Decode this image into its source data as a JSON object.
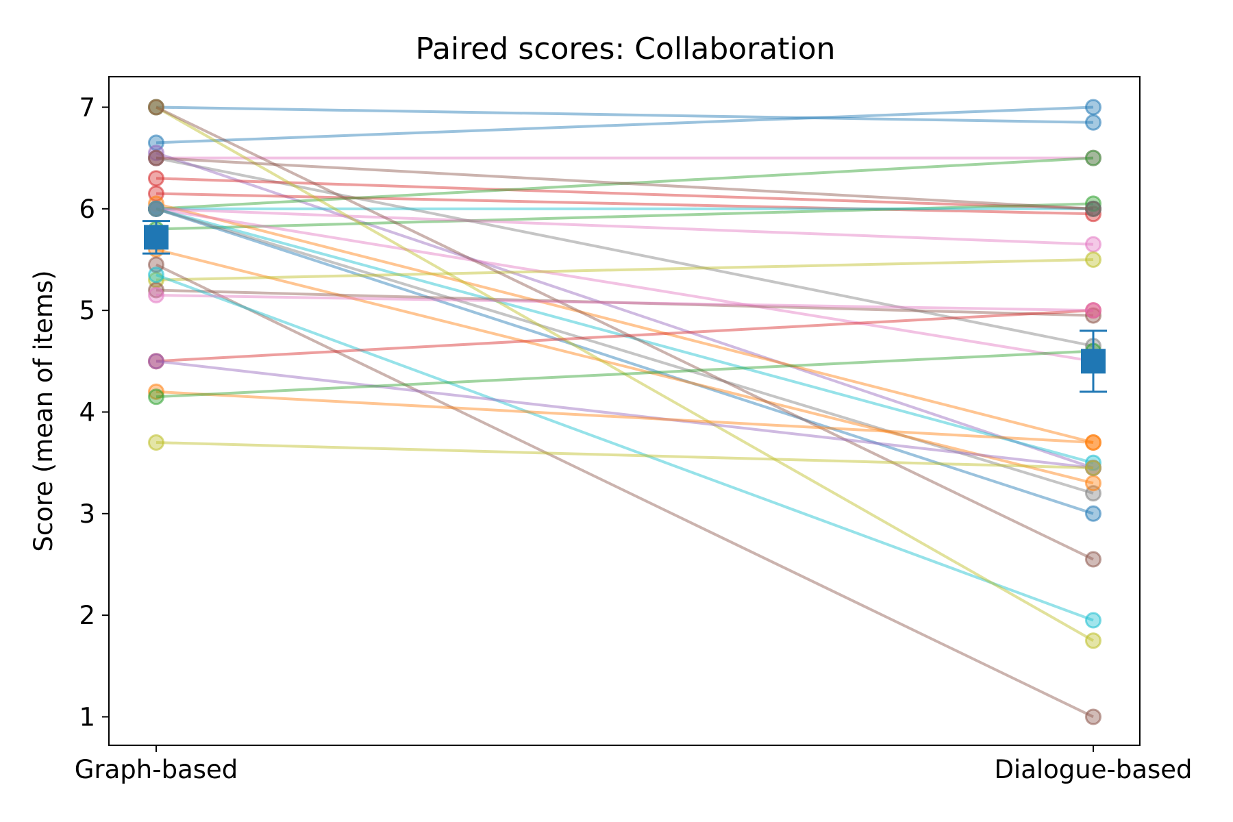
{
  "chart_data": {
    "type": "line",
    "title": "Paired scores: Collaboration",
    "xlabel": "",
    "ylabel": "Score (mean of items)",
    "categories": [
      "Graph-based",
      "Dialogue-based"
    ],
    "ylim": [
      0.72,
      7.3
    ],
    "yticks": [
      1,
      2,
      3,
      4,
      5,
      6,
      7
    ],
    "grid": false,
    "pairs": [
      {
        "values": [
          7.0,
          6.85
        ],
        "color": "#1f77b4"
      },
      {
        "values": [
          6.65,
          7.0
        ],
        "color": "#1f77b4"
      },
      {
        "values": [
          6.5,
          6.5
        ],
        "color": "#e377c2"
      },
      {
        "values": [
          6.5,
          4.65
        ],
        "color": "#7f7f7f"
      },
      {
        "values": [
          6.55,
          3.45
        ],
        "color": "#9467bd"
      },
      {
        "values": [
          6.3,
          6.0
        ],
        "color": "#d62728"
      },
      {
        "values": [
          6.15,
          5.95
        ],
        "color": "#d62728"
      },
      {
        "values": [
          6.0,
          6.5
        ],
        "color": "#2ca02c"
      },
      {
        "values": [
          5.8,
          6.05
        ],
        "color": "#2ca02c"
      },
      {
        "values": [
          6.0,
          6.0
        ],
        "color": "#17becf"
      },
      {
        "values": [
          6.05,
          3.7
        ],
        "color": "#ff7f0e"
      },
      {
        "values": [
          6.0,
          5.65
        ],
        "color": "#e377c2"
      },
      {
        "values": [
          6.0,
          4.5
        ],
        "color": "#e377c2"
      },
      {
        "values": [
          6.0,
          3.0
        ],
        "color": "#1f77b4"
      },
      {
        "values": [
          6.0,
          3.5
        ],
        "color": "#17becf"
      },
      {
        "values": [
          6.0,
          3.2
        ],
        "color": "#7f7f7f"
      },
      {
        "values": [
          5.6,
          3.3
        ],
        "color": "#ff7f0e"
      },
      {
        "values": [
          5.3,
          5.5
        ],
        "color": "#bcbd22"
      },
      {
        "values": [
          5.2,
          4.95
        ],
        "color": "#8c564b"
      },
      {
        "values": [
          5.45,
          1.0
        ],
        "color": "#8c564b"
      },
      {
        "values": [
          5.35,
          1.95
        ],
        "color": "#17becf"
      },
      {
        "values": [
          7.0,
          1.75
        ],
        "color": "#bcbd22"
      },
      {
        "values": [
          7.0,
          2.55
        ],
        "color": "#8c564b"
      },
      {
        "values": [
          4.5,
          5.0
        ],
        "color": "#d62728"
      },
      {
        "values": [
          4.5,
          3.45
        ],
        "color": "#9467bd"
      },
      {
        "values": [
          4.2,
          3.7
        ],
        "color": "#ff7f0e"
      },
      {
        "values": [
          4.15,
          4.6
        ],
        "color": "#2ca02c"
      },
      {
        "values": [
          3.7,
          3.45
        ],
        "color": "#bcbd22"
      },
      {
        "values": [
          6.5,
          6.0
        ],
        "color": "#8c564b"
      },
      {
        "values": [
          5.15,
          5.0
        ],
        "color": "#e377c2"
      }
    ],
    "means": {
      "values": [
        5.72,
        4.5
      ],
      "errors": [
        [
          5.56,
          5.88
        ],
        [
          4.2,
          4.8
        ]
      ],
      "color": "#1f77b4"
    }
  }
}
